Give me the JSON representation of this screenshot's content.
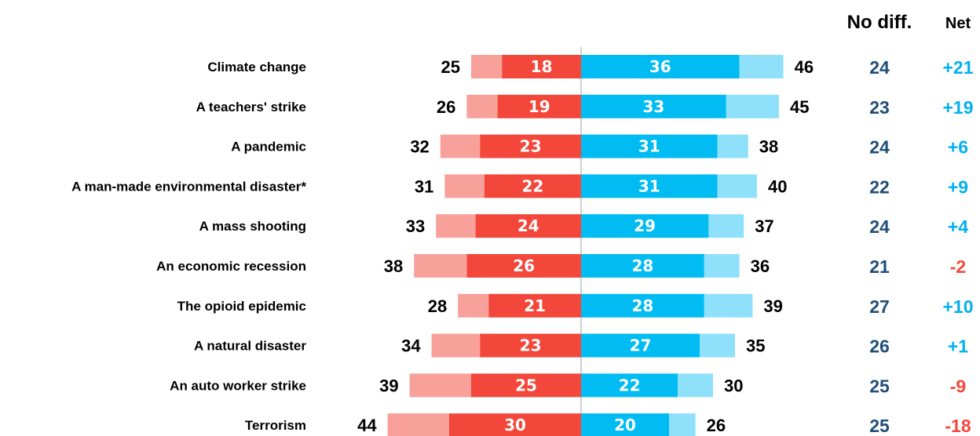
{
  "chart_data": {
    "type": "bar",
    "headers": {
      "no_diff": "No diff.",
      "net": "Net"
    },
    "categories": [
      "Climate change",
      "A teachers' strike",
      "A pandemic",
      "A man-made environmental disaster*",
      "A mass shooting",
      "An economic recession",
      "The opioid epidemic",
      "A natural disaster",
      "An auto worker strike",
      "Terrorism"
    ],
    "series": [
      {
        "values": [
          18,
          19,
          23,
          22,
          24,
          26,
          21,
          23,
          25,
          30
        ]
      },
      {
        "values": [
          25,
          26,
          32,
          31,
          33,
          38,
          28,
          34,
          39,
          44
        ]
      },
      {
        "values": [
          36,
          33,
          31,
          31,
          29,
          28,
          28,
          27,
          22,
          20
        ]
      },
      {
        "values": [
          46,
          45,
          38,
          40,
          37,
          36,
          39,
          35,
          30,
          26
        ]
      }
    ],
    "no_diff": [
      24,
      23,
      24,
      22,
      24,
      21,
      27,
      26,
      25,
      25
    ],
    "net": [
      "+21",
      "+19",
      "+6",
      "+9",
      "+4",
      "-2",
      "+10",
      "+1",
      "-9",
      "-18"
    ],
    "colors": {
      "left_dark": "#f4473b",
      "left_light": "#f8a09a",
      "right_dark": "#00bcf2",
      "right_light": "#8fe1fb",
      "no_diff": "#1f4e79",
      "net_positive": "#00b0f0",
      "net_negative": "#f4473b",
      "axis": "#bfbfbf"
    }
  }
}
